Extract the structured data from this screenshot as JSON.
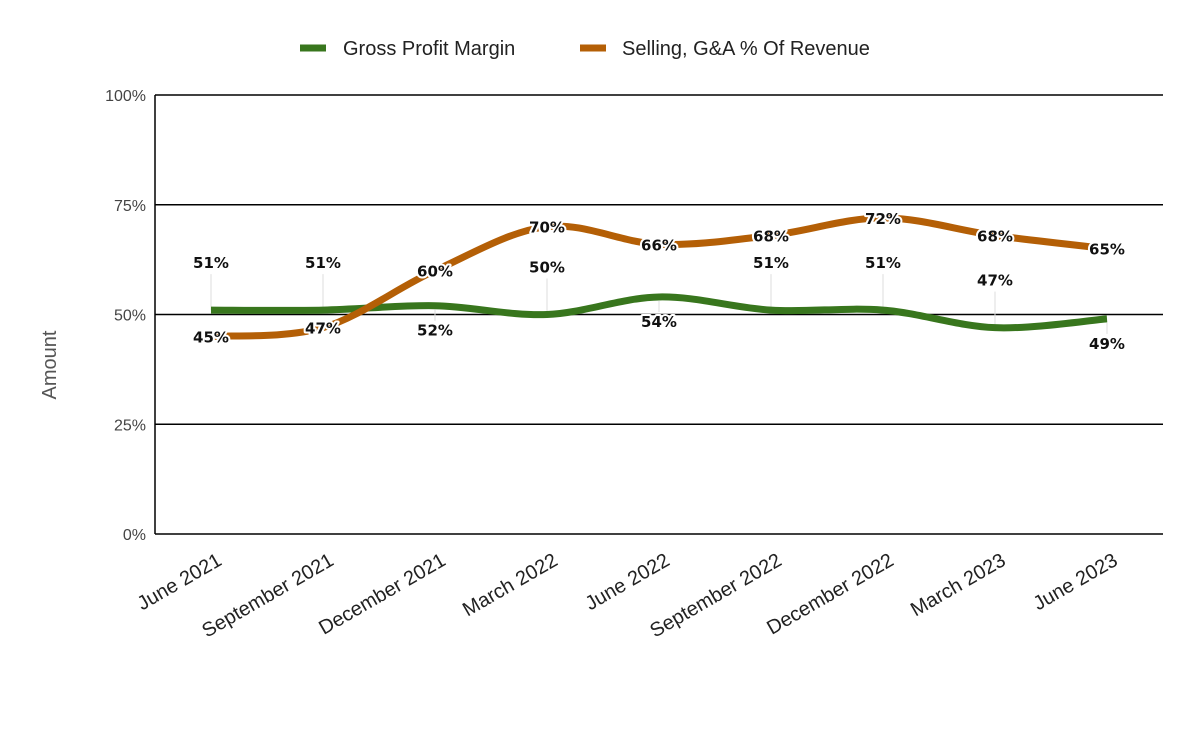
{
  "chart_data": {
    "type": "line",
    "title": "",
    "xlabel": "",
    "ylabel": "Amount",
    "ylim": [
      0,
      100
    ],
    "y_ticks": [
      "0%",
      "25%",
      "50%",
      "75%",
      "100%"
    ],
    "y_tick_values": [
      0,
      25,
      50,
      75,
      100
    ],
    "grid": true,
    "legend_position": "top",
    "smooth": true,
    "categories": [
      "June 2021",
      "September 2021",
      "December 2021",
      "March 2022",
      "June 2022",
      "September 2022",
      "December 2022",
      "March 2023",
      "June 2023"
    ],
    "series": [
      {
        "name": "Gross Profit Margin",
        "color": "#38761d",
        "values": [
          51,
          51,
          52,
          50,
          54,
          51,
          51,
          47,
          49
        ],
        "labels": [
          "51%",
          "51%",
          "52%",
          "50%",
          "54%",
          "51%",
          "51%",
          "47%",
          "49%"
        ]
      },
      {
        "name": "Selling, G&A % Of Revenue",
        "color": "#b45f06",
        "values": [
          45,
          47,
          60,
          70,
          66,
          68,
          72,
          68,
          65
        ],
        "labels": [
          "45%",
          "47%",
          "60%",
          "70%",
          "66%",
          "68%",
          "72%",
          "68%",
          "65%"
        ]
      }
    ]
  }
}
